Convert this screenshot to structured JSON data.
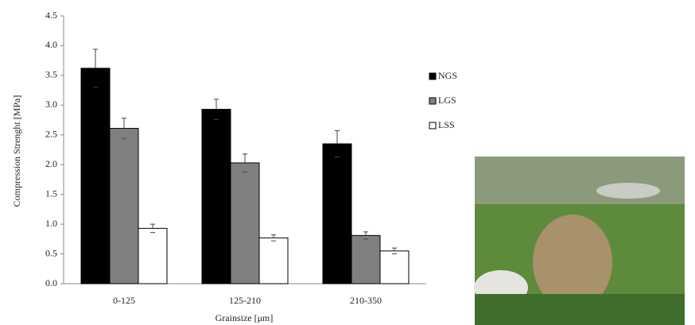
{
  "chart_data": {
    "type": "bar",
    "y_label": "Compression Strenght [MPa]",
    "x_label": "Grainsize [μm]",
    "categories": [
      "0-125",
      "125-210",
      "210-350"
    ],
    "series": [
      {
        "name": "NGS",
        "color": "#000000",
        "values": [
          3.62,
          2.93,
          2.35
        ],
        "errors": [
          0.32,
          0.17,
          0.22
        ]
      },
      {
        "name": "LGS",
        "color": "#808080",
        "values": [
          2.61,
          2.03,
          0.81
        ],
        "errors": [
          0.17,
          0.15,
          0.06
        ]
      },
      {
        "name": "LSS",
        "color": "#ffffff",
        "values": [
          0.93,
          0.77,
          0.55
        ],
        "errors": [
          0.07,
          0.05,
          0.05
        ]
      }
    ],
    "ylim": [
      0,
      4.5
    ],
    "yticks": [
      {
        "value": 0,
        "label": "0.0"
      },
      0.5,
      {
        "value": 1,
        "label": "1.0"
      },
      1.5,
      {
        "value": 2,
        "label": "2.0"
      },
      2.5,
      {
        "value": 3,
        "label": "3.0"
      },
      3.5,
      {
        "value": 4,
        "label": "4.0"
      },
      4.5
    ],
    "legend": "right"
  }
}
